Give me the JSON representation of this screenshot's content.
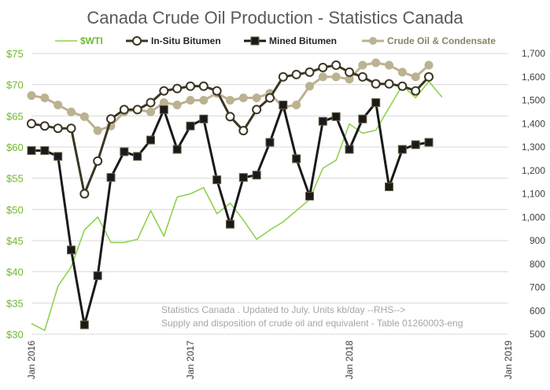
{
  "chart_data": {
    "type": "line",
    "title": "Canada Crude Oil Production - Statistics Canada",
    "x_labels": [
      "Jan 2016",
      "Jan 2017",
      "Jan 2018",
      "Jan 2019"
    ],
    "left_axis": {
      "ylim": [
        30,
        75
      ],
      "ticks": [
        "$30",
        "$35",
        "$40",
        "$45",
        "$50",
        "$55",
        "$60",
        "$65",
        "$70",
        "$75"
      ]
    },
    "right_axis": {
      "ylim": [
        500,
        1700
      ],
      "ticks": [
        "500",
        "600",
        "700",
        "800",
        "900",
        "1,000",
        "1,100",
        "1,200",
        "1,300",
        "1,400",
        "1,500",
        "1,600",
        "1,700"
      ]
    },
    "annotation": [
      "Statistics Canada . Updated to July. Units kb/day --RHS-->",
      "Supply and disposition of crude oil and equivalent - Table 01260003-eng"
    ],
    "series": [
      {
        "name": "$WTI",
        "axis": "left",
        "color": "#8fd14f",
        "marker": "none",
        "months": [
          0,
          1,
          2,
          3,
          4,
          5,
          6,
          7,
          8,
          9,
          10,
          11,
          12,
          13,
          14,
          15,
          16,
          17,
          18,
          19,
          20,
          21,
          22,
          23,
          24,
          25,
          26,
          27,
          28,
          29,
          30,
          31
        ],
        "values": [
          31.7,
          30.6,
          37.7,
          40.8,
          46.7,
          48.8,
          44.7,
          44.7,
          45.2,
          49.8,
          45.7,
          52.0,
          52.5,
          53.5,
          49.3,
          51.0,
          48.3,
          45.2,
          46.7,
          48.0,
          49.8,
          51.6,
          56.6,
          57.9,
          63.7,
          62.2,
          62.7,
          66.3,
          69.9,
          67.9,
          70.5,
          68.0
        ]
      },
      {
        "name": "In-Situ Bitumen",
        "axis": "right",
        "color": "#3b3523",
        "marker": "open-circle",
        "months": [
          0,
          1,
          2,
          3,
          4,
          5,
          6,
          7,
          8,
          9,
          10,
          11,
          12,
          13,
          14,
          15,
          16,
          17,
          18,
          19,
          20,
          21,
          22,
          23,
          24,
          25,
          26,
          27,
          28,
          29,
          30
        ],
        "values": [
          1400,
          1390,
          1380,
          1380,
          1100,
          1240,
          1420,
          1460,
          1460,
          1490,
          1540,
          1550,
          1560,
          1560,
          1540,
          1430,
          1370,
          1460,
          1510,
          1600,
          1610,
          1620,
          1640,
          1650,
          1620,
          1600,
          1570,
          1570,
          1560,
          1540,
          1600
        ]
      },
      {
        "name": "Mined Bitumen",
        "axis": "right",
        "color": "#1a1a1a",
        "marker": "filled-square",
        "months": [
          0,
          1,
          2,
          3,
          4,
          5,
          6,
          7,
          8,
          9,
          10,
          11,
          12,
          13,
          14,
          15,
          16,
          17,
          18,
          19,
          20,
          21,
          22,
          23,
          24,
          25,
          26,
          27,
          28,
          29,
          30
        ],
        "values": [
          1285,
          1285,
          1260,
          860,
          540,
          750,
          1170,
          1280,
          1260,
          1330,
          1460,
          1290,
          1390,
          1420,
          1160,
          970,
          1170,
          1180,
          1320,
          1480,
          1250,
          1090,
          1410,
          1430,
          1290,
          1420,
          1490,
          1130,
          1290,
          1310,
          1320
        ]
      },
      {
        "name": "Crude Oil & Condensate",
        "axis": "right",
        "color": "#bcb292",
        "marker": "filled-circle",
        "months": [
          0,
          1,
          2,
          3,
          4,
          5,
          6,
          7,
          8,
          9,
          10,
          11,
          12,
          13,
          14,
          15,
          16,
          17,
          18,
          19,
          20,
          21,
          22,
          23,
          24,
          25,
          26,
          27,
          28,
          29,
          30
        ],
        "values": [
          1520,
          1510,
          1480,
          1450,
          1430,
          1370,
          1390,
          1450,
          1460,
          1450,
          1490,
          1480,
          1500,
          1500,
          1530,
          1500,
          1510,
          1510,
          1530,
          1470,
          1480,
          1560,
          1600,
          1600,
          1590,
          1650,
          1660,
          1650,
          1620,
          1600,
          1650
        ]
      }
    ]
  }
}
